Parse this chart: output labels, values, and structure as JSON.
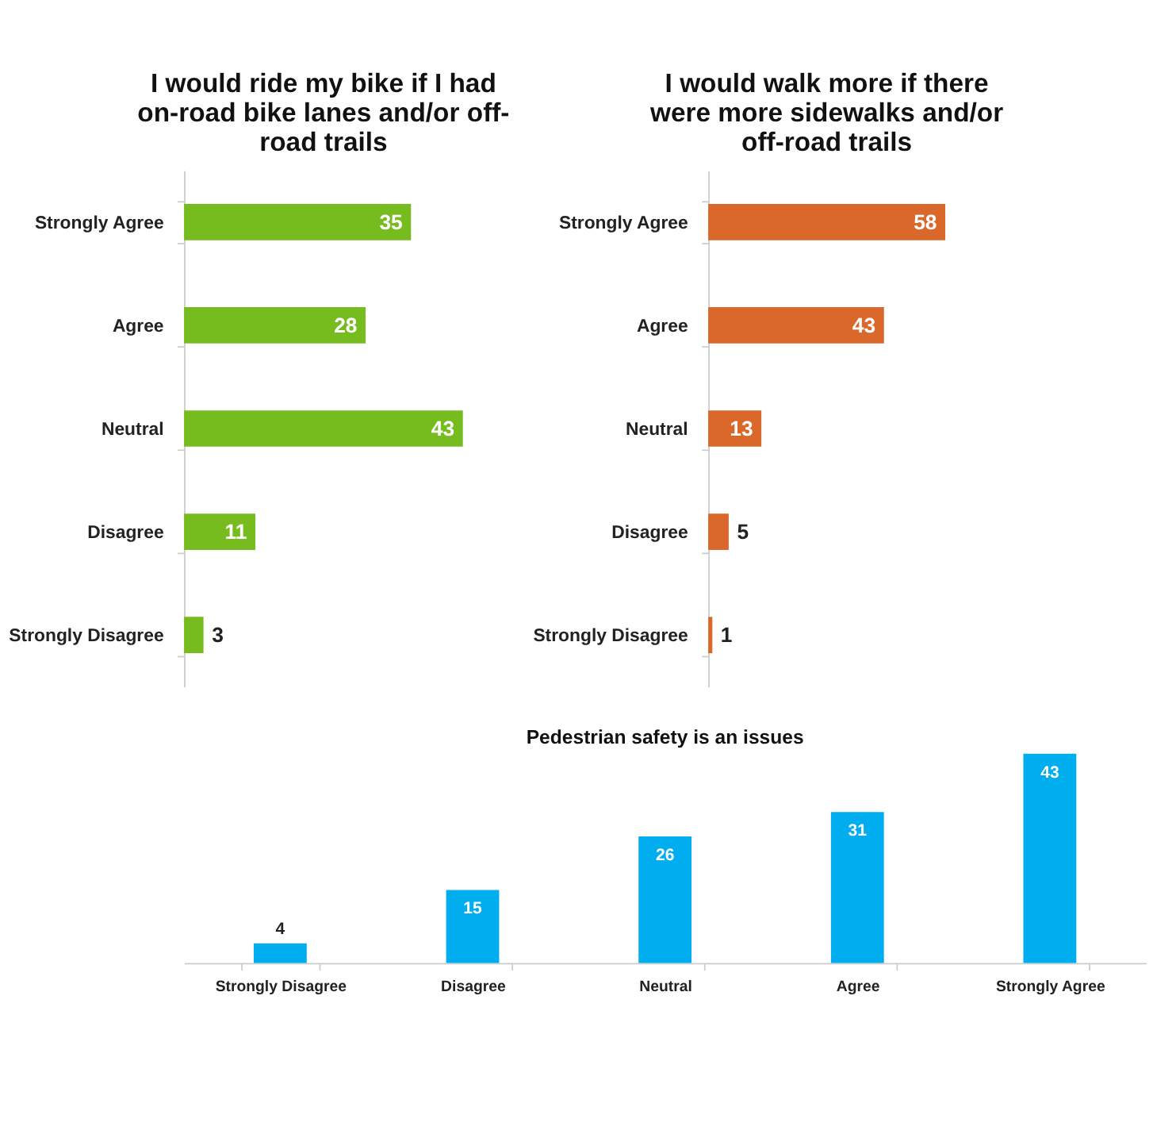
{
  "chart_data": [
    {
      "type": "bar",
      "orientation": "horizontal",
      "title": "I would ride my bike if I had on-road bike lanes and/or off-road trails",
      "categories": [
        "Strongly Agree",
        "Agree",
        "Neutral",
        "Disagree",
        "Strongly Disagree"
      ],
      "values": [
        35,
        28,
        43,
        11,
        3
      ],
      "color": "#77bc1f",
      "data_labels": true
    },
    {
      "type": "bar",
      "orientation": "horizontal",
      "title": "I would walk more if there were more sidewalks and/or off-road trails",
      "categories": [
        "Strongly Agree",
        "Agree",
        "Neutral",
        "Disagree",
        "Strongly Disagree"
      ],
      "values": [
        58,
        43,
        13,
        5,
        1
      ],
      "color": "#d9682a",
      "data_labels": true
    },
    {
      "type": "bar",
      "title": "Pedestrian safety is an issues",
      "categories": [
        "Strongly Disagree",
        "Disagree",
        "Neutral",
        "Agree",
        "Strongly Agree"
      ],
      "values": [
        4,
        15,
        26,
        31,
        43
      ],
      "color": "#00aeef",
      "data_labels": true
    }
  ]
}
